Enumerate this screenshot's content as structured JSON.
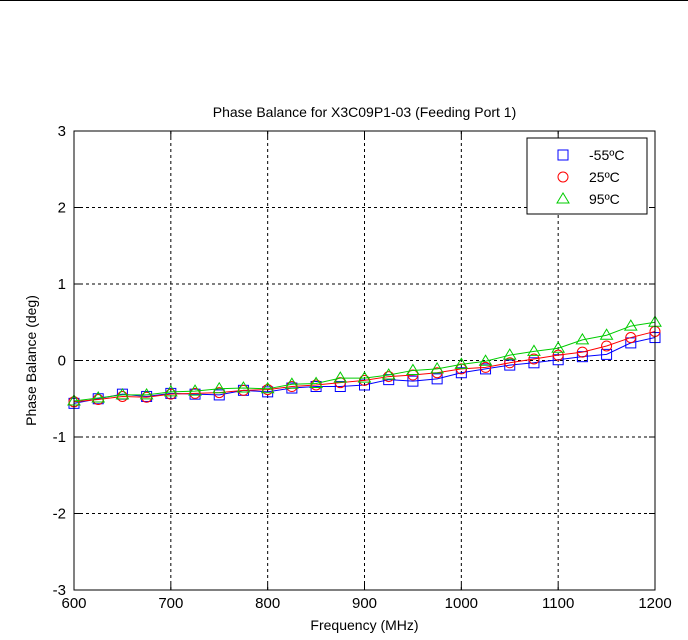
{
  "chart_data": {
    "type": "line",
    "title": "Phase Balance for X3C09P1-03 (Feeding Port 1)",
    "xlabel": "Frequency (MHz)",
    "ylabel": "Phase Balance (deg)",
    "xlim": [
      600,
      1200
    ],
    "ylim": [
      -3,
      3
    ],
    "xticks": [
      600,
      700,
      800,
      900,
      1000,
      1100,
      1200
    ],
    "yticks": [
      -3,
      -2,
      -1,
      0,
      1,
      2,
      3
    ],
    "grid": true,
    "legend_position": "top-right",
    "x": [
      600,
      625,
      650,
      675,
      700,
      725,
      750,
      775,
      800,
      825,
      850,
      875,
      900,
      925,
      950,
      975,
      1000,
      1025,
      1050,
      1075,
      1100,
      1125,
      1150,
      1175,
      1200
    ],
    "series": [
      {
        "name": "-55ºC",
        "color": "#0000ff",
        "marker": "square",
        "values": [
          -0.56,
          -0.5,
          -0.44,
          -0.47,
          -0.43,
          -0.44,
          -0.45,
          -0.39,
          -0.41,
          -0.36,
          -0.34,
          -0.34,
          -0.32,
          -0.25,
          -0.27,
          -0.24,
          -0.16,
          -0.11,
          -0.06,
          -0.03,
          0.01,
          0.05,
          0.08,
          0.23,
          0.3
        ]
      },
      {
        "name": "25ºC",
        "color": "#ff0000",
        "marker": "circle",
        "values": [
          -0.54,
          -0.51,
          -0.47,
          -0.48,
          -0.44,
          -0.43,
          -0.42,
          -0.39,
          -0.38,
          -0.34,
          -0.32,
          -0.29,
          -0.26,
          -0.21,
          -0.19,
          -0.16,
          -0.11,
          -0.09,
          -0.03,
          0.02,
          0.07,
          0.11,
          0.19,
          0.3,
          0.38
        ]
      },
      {
        "name": "95ºC",
        "color": "#00cc00",
        "marker": "triangle",
        "values": [
          -0.53,
          -0.49,
          -0.45,
          -0.45,
          -0.41,
          -0.4,
          -0.37,
          -0.36,
          -0.37,
          -0.31,
          -0.3,
          -0.23,
          -0.23,
          -0.19,
          -0.13,
          -0.11,
          -0.05,
          -0.01,
          0.07,
          0.12,
          0.16,
          0.27,
          0.33,
          0.45,
          0.5
        ]
      }
    ]
  }
}
